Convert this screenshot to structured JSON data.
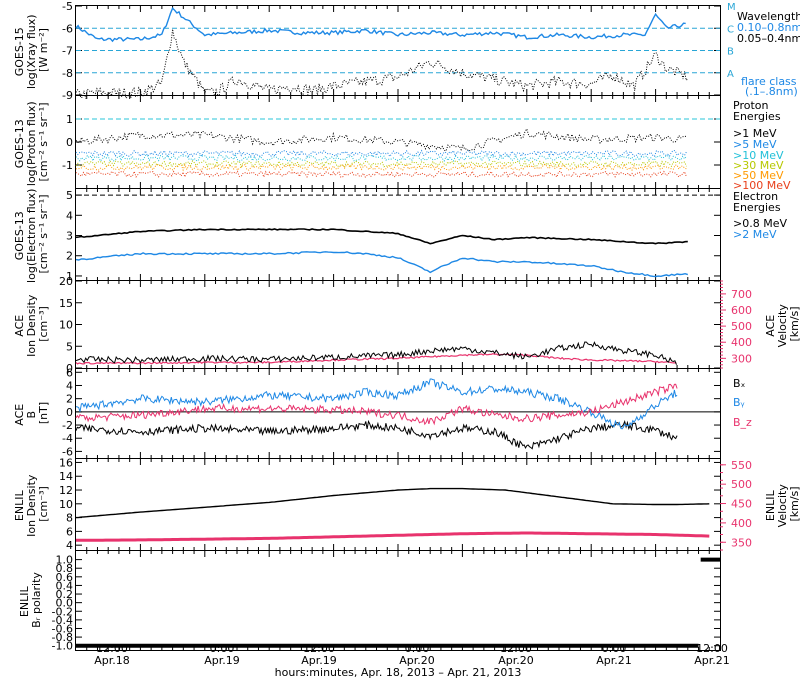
{
  "colors": {
    "axis": "#000000",
    "xray_long": "#1e88e5",
    "xray_short": "#000000",
    "flare_line": "#29a6d6",
    "velocity": "#e8336d",
    "bx": "#000000",
    "by": "#1e88e5",
    "bz": "#e8336d",
    "proton": [
      "#000000",
      "#1e88e5",
      "#22c0d8",
      "#b8c800",
      "#ff9a00",
      "#e8401c"
    ]
  },
  "x_axis": {
    "tick_labels": [
      {
        "time": "12:00",
        "date": "Apr.18"
      },
      {
        "time": "0:00",
        "date": "Apr.19"
      },
      {
        "time": "12:00",
        "date": "Apr.19"
      },
      {
        "time": "0:00",
        "date": "Apr.20"
      },
      {
        "time": "12:00",
        "date": "Apr.20"
      },
      {
        "time": "0:00",
        "date": "Apr.21"
      },
      {
        "time": "12:00",
        "date": "Apr.21"
      }
    ],
    "caption": "hours:minutes, Apr. 18, 2013 – Apr. 21, 2013"
  },
  "chart_data": [
    {
      "type": "line",
      "ylabel": [
        "GOES-15",
        "log(Xray flux)",
        "[W m⁻²]"
      ],
      "ylim": [
        -9,
        -5
      ],
      "ytick_labels": [
        "-5",
        "-6",
        "-7",
        "-8",
        "-9"
      ],
      "legend_title": "Wavelength",
      "series": [
        {
          "name": "0.10–0.8nm",
          "x_hours": [
            0,
            4,
            8,
            12,
            16,
            18,
            20,
            24,
            30,
            36,
            42,
            48,
            54,
            60,
            66,
            72,
            78,
            84,
            90,
            96,
            102,
            106,
            108,
            110,
            114
          ],
          "values": [
            -5.9,
            -6.5,
            -6.5,
            -6.5,
            -6.3,
            -5.1,
            -5.5,
            -6.3,
            -6.2,
            -6.1,
            -6.2,
            -6.2,
            -6.1,
            -6.3,
            -6.2,
            -6.3,
            -6.2,
            -6.4,
            -6.3,
            -6.4,
            -6.3,
            -6.3,
            -5.4,
            -6.0,
            -5.8
          ]
        },
        {
          "name": "0.05–0.4nm",
          "x_hours": [
            0,
            4,
            8,
            12,
            16,
            18,
            20,
            24,
            26,
            30,
            36,
            40,
            44,
            48,
            54,
            60,
            66,
            72,
            78,
            84,
            90,
            96,
            100,
            104,
            108,
            110,
            114
          ],
          "values": [
            -9.0,
            -8.9,
            -8.9,
            -8.9,
            -8.5,
            -6.1,
            -7.5,
            -8.9,
            -8.9,
            -8.3,
            -8.8,
            -8.6,
            -8.8,
            -8.6,
            -8.4,
            -8.2,
            -7.5,
            -8.0,
            -8.3,
            -8.6,
            -8.4,
            -8.5,
            -8.1,
            -8.6,
            -7.2,
            -7.8,
            -8.2
          ]
        }
      ],
      "flare_classes": [
        {
          "label": "M",
          "value": -5
        },
        {
          "label": "C",
          "value": -6
        },
        {
          "label": "B",
          "value": -7
        },
        {
          "label": "A",
          "value": -8
        }
      ],
      "flare_class_legend": [
        "flare class",
        "(.1–.8nm)"
      ]
    },
    {
      "type": "scatter",
      "ylabel": [
        "GOES-13",
        "log(Proton flux)",
        "[cm⁻² s⁻¹ sr⁻¹]"
      ],
      "ylim": [
        -2,
        2
      ],
      "ytick_labels": [
        "1",
        "0",
        "-1"
      ],
      "reference_line": 1,
      "legend_title": [
        "Proton",
        "Energies"
      ],
      "series": [
        {
          "name": ">1 MeV",
          "x_hours": [
            0,
            12,
            24,
            36,
            48,
            60,
            72,
            84,
            96,
            108,
            114
          ],
          "values": [
            0.0,
            0.3,
            0.3,
            0.0,
            0.2,
            0.0,
            -0.3,
            0.4,
            0.1,
            0.2,
            0.1
          ]
        },
        {
          "name": ">5 MeV",
          "x_hours": [
            0,
            24,
            48,
            72,
            96,
            114
          ],
          "values": [
            -0.5,
            -0.5,
            -0.5,
            -0.5,
            -0.5,
            -0.5
          ]
        },
        {
          "name": ">10 MeV",
          "x_hours": [
            0,
            24,
            48,
            72,
            96,
            114
          ],
          "values": [
            -0.7,
            -0.7,
            -0.7,
            -0.7,
            -0.7,
            -0.7
          ]
        },
        {
          "name": ">30 MeV",
          "x_hours": [
            0,
            24,
            48,
            72,
            96,
            114
          ],
          "values": [
            -0.95,
            -0.95,
            -0.95,
            -0.95,
            -0.95,
            -0.95
          ]
        },
        {
          "name": ">50 MeV",
          "x_hours": [
            0,
            24,
            48,
            72,
            96,
            114
          ],
          "values": [
            -1.1,
            -1.1,
            -1.1,
            -1.1,
            -1.1,
            -1.1
          ]
        },
        {
          "name": ">100 MeV",
          "x_hours": [
            0,
            24,
            48,
            72,
            96,
            114
          ],
          "values": [
            -1.4,
            -1.4,
            -1.4,
            -1.4,
            -1.4,
            -1.4
          ]
        }
      ]
    },
    {
      "type": "line",
      "ylabel": [
        "GOES-13",
        "log(Electron flux)",
        "[cm⁻² s⁻¹ sr⁻¹]"
      ],
      "ylim": [
        0.8,
        5.3
      ],
      "ytick_labels": [
        "5",
        "4",
        "3",
        "2",
        "1"
      ],
      "reference_line": 5,
      "legend_title": [
        "Electron",
        "Energies"
      ],
      "series": [
        {
          "name": ">0.8 MeV",
          "x_hours": [
            0,
            12,
            24,
            36,
            48,
            54,
            60,
            66,
            72,
            78,
            84,
            96,
            108,
            114
          ],
          "values": [
            2.9,
            3.2,
            3.3,
            3.3,
            3.3,
            3.2,
            3.1,
            2.6,
            3.0,
            2.8,
            2.9,
            2.8,
            2.6,
            2.7
          ]
        },
        {
          "name": ">2 MeV",
          "x_hours": [
            0,
            12,
            24,
            36,
            48,
            54,
            60,
            66,
            72,
            78,
            84,
            96,
            102,
            108,
            114
          ],
          "values": [
            1.8,
            2.1,
            2.1,
            2.1,
            2.2,
            2.1,
            1.9,
            1.2,
            1.9,
            1.7,
            1.7,
            1.5,
            1.2,
            1.0,
            1.1
          ]
        }
      ]
    },
    {
      "type": "scatter",
      "ylabel": [
        "ACE",
        "Ion Density",
        "[cm⁻³]"
      ],
      "ylim": [
        0,
        20
      ],
      "ytick_labels": [
        "20",
        "15",
        "10",
        "5",
        "0"
      ],
      "y2label": [
        "ACE",
        "Velocity",
        "[km/s]"
      ],
      "y2lim": [
        240,
        780
      ],
      "y2tick_labels": [
        "700",
        "600",
        "500",
        "400",
        "300"
      ],
      "series": [
        {
          "name": "Ion Density",
          "x_hours": [
            0,
            12,
            24,
            36,
            48,
            60,
            66,
            72,
            78,
            84,
            90,
            96,
            102,
            108,
            112
          ],
          "values": [
            2.0,
            1.8,
            2.2,
            2.0,
            2.5,
            3.0,
            4.0,
            4.5,
            3.5,
            2.5,
            4.5,
            5.5,
            4.0,
            3.0,
            1.0
          ]
        },
        {
          "name": "Velocity",
          "x_hours": [
            0,
            12,
            24,
            36,
            48,
            60,
            66,
            72,
            78,
            84,
            90,
            96,
            102,
            108,
            112
          ],
          "values": [
            270,
            270,
            275,
            275,
            290,
            300,
            310,
            320,
            325,
            320,
            300,
            290,
            285,
            280,
            270
          ]
        }
      ]
    },
    {
      "type": "scatter",
      "ylabel": [
        "ACE",
        "B",
        "[nT]"
      ],
      "ylim": [
        -7,
        6.5
      ],
      "ytick_labels": [
        "6",
        "4",
        "2",
        "0",
        "-2",
        "-4",
        "-6"
      ],
      "series": [
        {
          "name": "Bₓ",
          "x_hours": [
            0,
            12,
            24,
            36,
            48,
            54,
            60,
            66,
            72,
            78,
            84,
            90,
            96,
            102,
            108,
            112
          ],
          "values": [
            -2.5,
            -3.0,
            -2.5,
            -3.0,
            -2.5,
            -2.0,
            -2.5,
            -3.5,
            -2.5,
            -3.0,
            -5.5,
            -4.0,
            -2.5,
            -2.0,
            -2.8,
            -4.0
          ]
        },
        {
          "name": "Bᵧ",
          "x_hours": [
            0,
            12,
            24,
            36,
            48,
            54,
            60,
            66,
            72,
            78,
            84,
            90,
            96,
            102,
            108,
            112
          ],
          "values": [
            0.5,
            2.0,
            1.5,
            2.5,
            2.0,
            3.0,
            2.5,
            4.5,
            3.0,
            3.5,
            3.0,
            2.0,
            0.0,
            -2.5,
            1.0,
            3.0
          ]
        },
        {
          "name": "B_z",
          "x_hours": [
            0,
            12,
            24,
            36,
            48,
            54,
            60,
            66,
            72,
            78,
            84,
            90,
            96,
            102,
            108,
            112
          ],
          "values": [
            -1.0,
            -0.5,
            0.5,
            0.5,
            0.3,
            0.0,
            -0.5,
            -1.5,
            0.5,
            -0.5,
            -1.0,
            -0.5,
            0.0,
            1.5,
            3.0,
            4.0
          ]
        }
      ]
    },
    {
      "type": "line",
      "ylabel": [
        "ENLIL",
        "Ion Density",
        "[cm⁻³]"
      ],
      "ylim": [
        3.3,
        16.5
      ],
      "ytick_labels": [
        "16",
        "14",
        "12",
        "10",
        "8",
        "6",
        "4"
      ],
      "y2label": [
        "ENLIL",
        "Velocity",
        "[km/s]"
      ],
      "y2lim": [
        330,
        565
      ],
      "y2tick_labels": [
        "550",
        "500",
        "450",
        "400",
        "350"
      ],
      "series": [
        {
          "name": "Ion Density",
          "x_hours": [
            0,
            12,
            24,
            36,
            48,
            60,
            66,
            72,
            80,
            90,
            100,
            108,
            112,
            118
          ],
          "values": [
            8.0,
            8.8,
            9.5,
            10.2,
            11.2,
            12.0,
            12.2,
            12.2,
            12.0,
            11.0,
            10.0,
            9.9,
            9.9,
            10.0
          ]
        },
        {
          "name": "Velocity",
          "x_hours": [
            0,
            12,
            24,
            36,
            48,
            60,
            72,
            84,
            96,
            108,
            118
          ],
          "values": [
            355,
            356,
            358,
            360,
            364,
            368,
            372,
            374,
            372,
            370,
            366
          ]
        }
      ]
    },
    {
      "type": "line",
      "ylabel": [
        "ENLIL",
        "Bᵣ polarity"
      ],
      "ylim": [
        -1.1,
        1.2
      ],
      "ytick_labels": [
        "1.0",
        "0.8",
        "0.6",
        "0.4",
        "0.2",
        "0.0",
        "-0.2",
        "-0.4",
        "-0.6",
        "-0.8",
        "-1.0"
      ],
      "series": [
        {
          "name": "Bᵣ polarity",
          "x_hours": [
            0,
            116,
            116.3,
            118
          ],
          "values": [
            -1,
            -1,
            1,
            1
          ]
        }
      ]
    }
  ]
}
